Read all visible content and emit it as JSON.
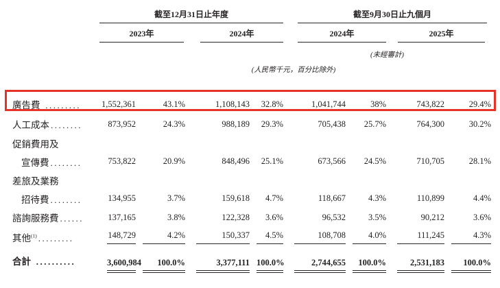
{
  "page": {
    "background": "#ffffff",
    "text_color": "#262223",
    "highlight_color": "#e63328"
  },
  "table": {
    "unit_note": "(人民幣千元，百分比除外)",
    "col_groups": [
      {
        "title": "截至12月31日止年度",
        "years": [
          {
            "label": "2023年"
          },
          {
            "label": "2024年"
          }
        ],
        "note": ""
      },
      {
        "title": "截至9月30日止九個月",
        "years": [
          {
            "label": "2024年"
          },
          {
            "label": "2025年"
          }
        ],
        "note": "(未經審計)"
      }
    ],
    "rows": [
      {
        "label": "廣告費",
        "dots": " .........",
        "highlighted": true,
        "values": [
          "1,552,361",
          "43.1%",
          "1,108,143",
          "32.8%",
          "1,041,744",
          "38%",
          "743,822",
          "29.4%"
        ]
      },
      {
        "label": "人工成本",
        "dots": "........",
        "values": [
          "873,952",
          "24.3%",
          "988,189",
          "29.3%",
          "705,438",
          "25.7%",
          "764,300",
          "30.2%"
        ]
      },
      {
        "label": "促銷費用及",
        "dots": "",
        "values": []
      },
      {
        "label": "宣傳費",
        "dots": "........",
        "indent": true,
        "values": [
          "753,822",
          "20.9%",
          "848,496",
          "25.1%",
          "673,566",
          "24.5%",
          "710,705",
          "28.1%"
        ]
      },
      {
        "label": "差旅及業務",
        "dots": "",
        "values": []
      },
      {
        "label": "招待費",
        "dots": "........",
        "indent": true,
        "values": [
          "134,955",
          "3.7%",
          "159,618",
          "4.7%",
          "118,667",
          "4.3%",
          "110,899",
          "4.4%"
        ]
      },
      {
        "label": "諮詢服務費",
        "dots": "......",
        "values": [
          "137,165",
          "3.8%",
          "122,328",
          "3.6%",
          "96,532",
          "3.5%",
          "90,212",
          "3.6%"
        ]
      },
      {
        "label": "其他",
        "sup": "(1)",
        "dots": ".........",
        "rule_below": true,
        "values": [
          "148,729",
          "4.2%",
          "150,337",
          "4.5%",
          "108,708",
          "4.0%",
          "111,245",
          "4.3%"
        ]
      },
      {
        "label": "合計",
        "dots": " ..........",
        "total": true,
        "values": [
          "3,600,984",
          "100.0%",
          "3,377,111",
          "100.0%",
          "2,744,655",
          "100.0%",
          "2,531,183",
          "100.0%"
        ]
      }
    ]
  }
}
